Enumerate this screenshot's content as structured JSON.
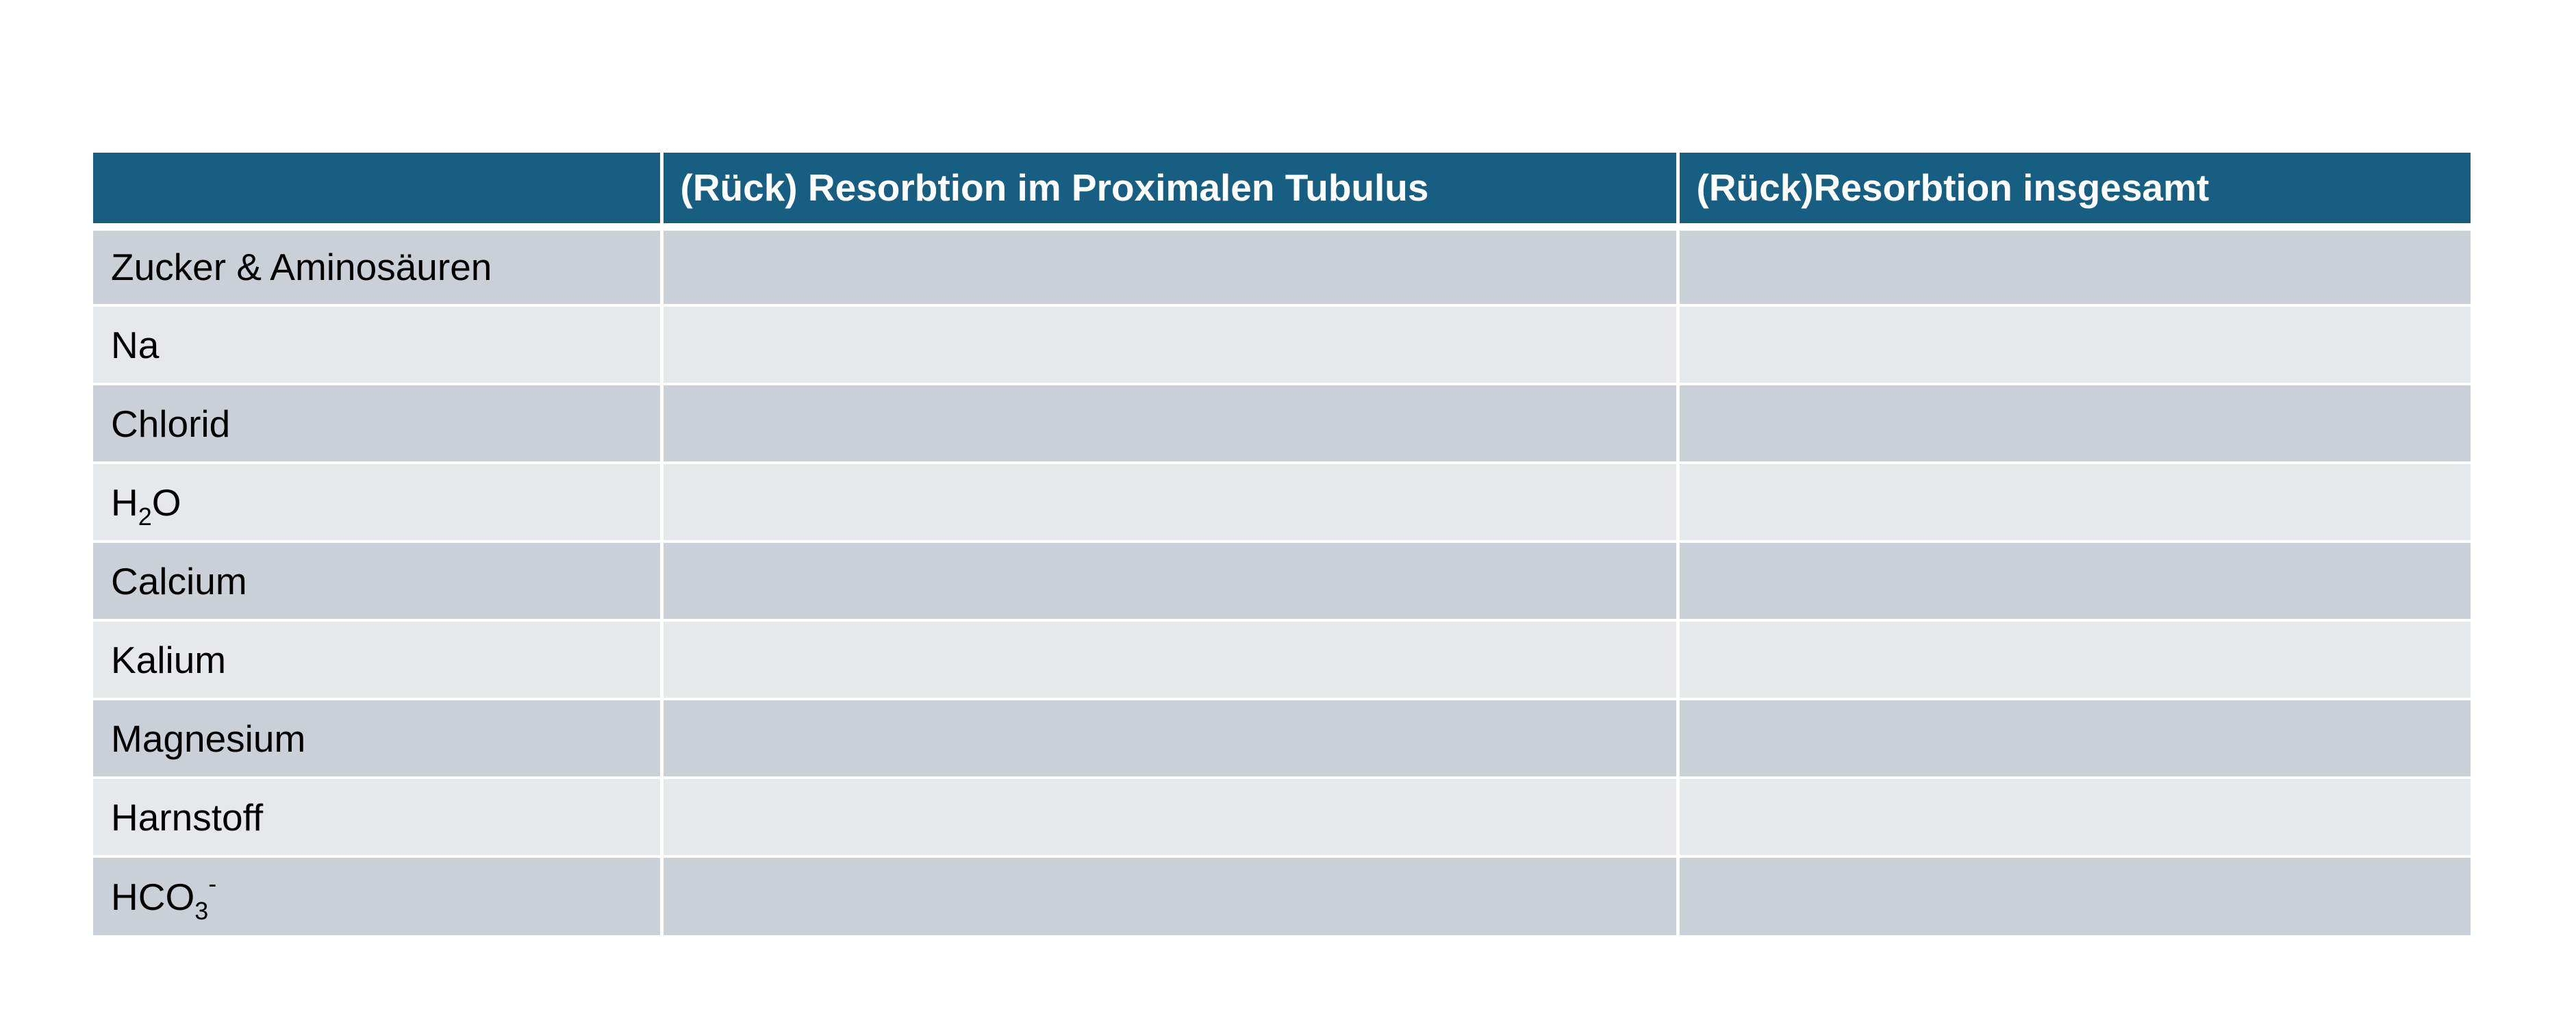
{
  "table": {
    "headers": [
      "",
      "(Rück) Resorbtion im Proximalen Tubulus",
      "(Rück)Resorbtion insgesamt"
    ],
    "rows": [
      {
        "label": "Zucker & Aminosäuren",
        "proximal": "",
        "total": ""
      },
      {
        "label": "Na",
        "proximal": "",
        "total": ""
      },
      {
        "label": "Chlorid",
        "proximal": "",
        "total": ""
      },
      {
        "label_main": "H",
        "label_sub": "2",
        "label_tail": "O",
        "proximal": "",
        "total": ""
      },
      {
        "label": "Calcium",
        "proximal": "",
        "total": ""
      },
      {
        "label": "Kalium",
        "proximal": "",
        "total": ""
      },
      {
        "label": "Magnesium",
        "proximal": "",
        "total": ""
      },
      {
        "label": "Harnstoff",
        "proximal": "",
        "total": ""
      },
      {
        "label_main": "HCO",
        "label_sub": "3",
        "label_sup": "-",
        "proximal": "",
        "total": ""
      }
    ]
  },
  "colors": {
    "header_bg": "#165f82",
    "row_dark": "#cad0d7",
    "row_light": "#e6e9ec"
  }
}
